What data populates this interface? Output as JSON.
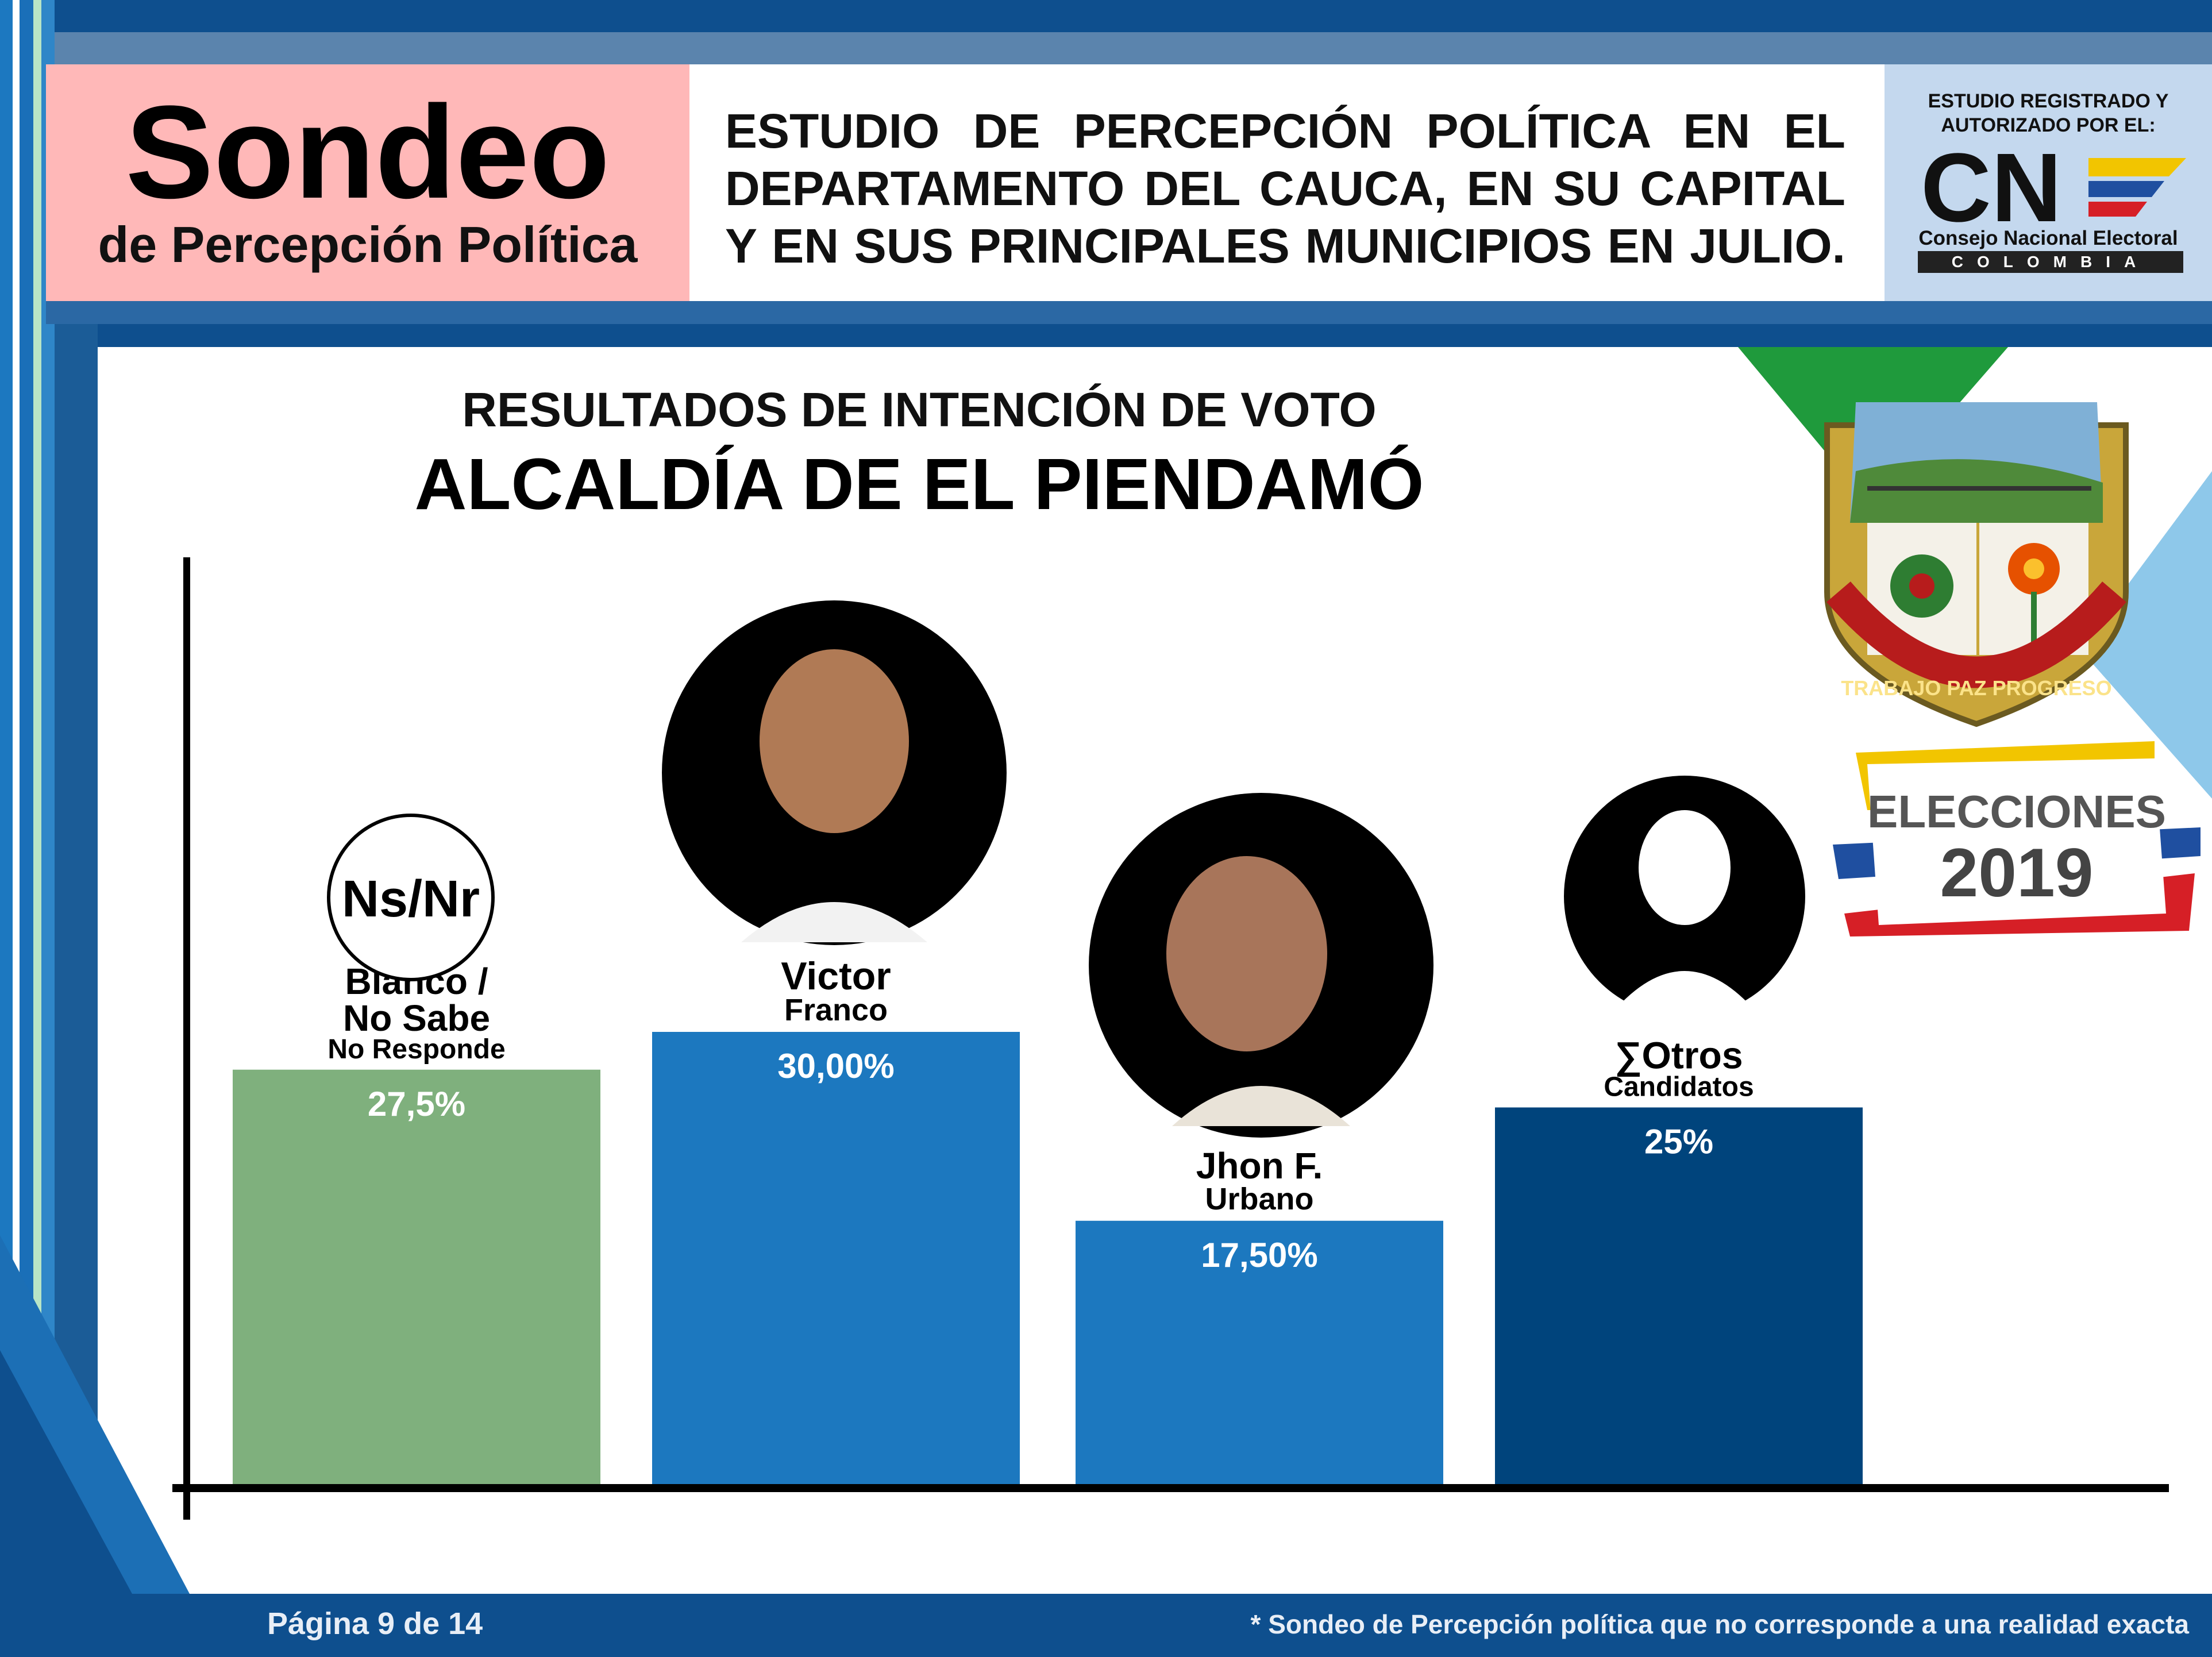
{
  "header": {
    "brand_title": "Sondeo",
    "brand_subtitle": "de Percepción Política",
    "study_lines": [
      "ESTUDIO DE PERCEPCIÓN POLÍTICA EN EL",
      "DEPARTAMENTO DEL CAUCA, EN SU CAPITAL",
      "Y EN SUS PRINCIPALES MUNICIPIOS EN JULIO."
    ],
    "registered_line1": "ESTUDIO REGISTRADO Y",
    "registered_line2": "AUTORIZADO POR EL:",
    "cne_logo_text": "CN",
    "cne_name": "Consejo Nacional Electoral",
    "cne_country": "COLOMBIA"
  },
  "crest": {
    "ribbon_text": "TRABAJO PAZ PROGRESO"
  },
  "elections_badge": {
    "line1": "ELECCIONES",
    "line2": "2019"
  },
  "chart_data": {
    "type": "bar",
    "subtitle": "RESULTADOS DE INTENCIÓN DE VOTO",
    "title": "ALCALDÍA DE EL PIENDAMÓ",
    "categories": [
      "Blanco / No Sabe No Responde",
      "Victor Franco",
      "Jhon F. Urbano",
      "∑Otros Candidatos"
    ],
    "values": [
      27.5,
      30.0,
      17.5,
      25.0
    ],
    "value_labels": [
      "27,5%",
      "30,00%",
      "17,50%",
      "25%"
    ],
    "name_lines": [
      [
        "Blanco /",
        "No Sabe",
        "No Responde"
      ],
      [
        "Victor",
        "Franco"
      ],
      [
        "Jhon F.",
        "Urbano"
      ],
      [
        "∑Otros",
        "Candidatos"
      ]
    ],
    "nsnr_badge": "Ns/Nr",
    "colors": [
      "#7fb07d",
      "#1c78bf",
      "#1c78bf",
      "#00447c"
    ],
    "ylim": [
      0,
      100
    ],
    "grid": false
  },
  "footer": {
    "page": "Página 9 de 14",
    "disclaimer": "* Sondeo de Percepción política que no corresponde a una realidad exacta"
  }
}
